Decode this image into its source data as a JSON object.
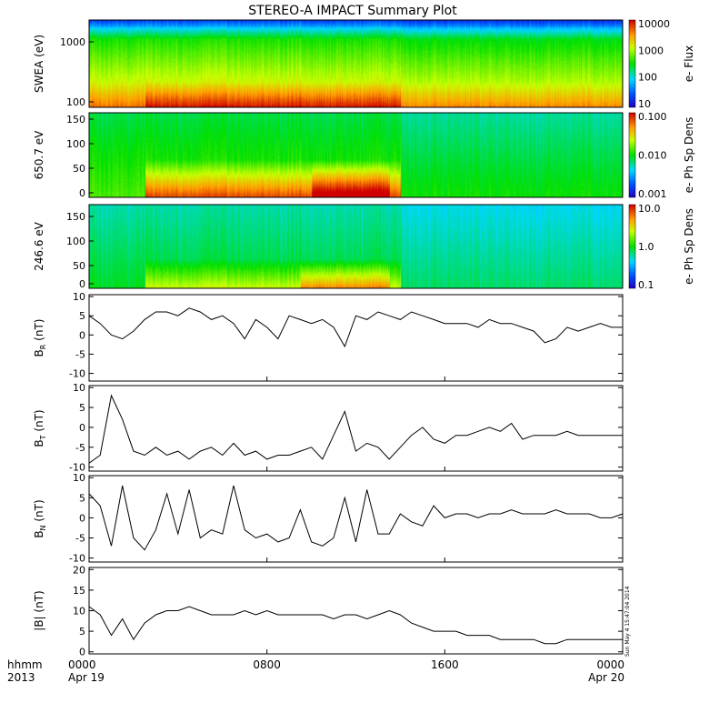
{
  "title": "STEREO-A IMPACT Summary Plot",
  "stamp": "Sun May  4 15:47:04 2014",
  "x_axis": {
    "corner_label": [
      "hhmm",
      "2013"
    ],
    "ticks": [
      {
        "label": "0000",
        "sub": "Apr 19",
        "hour": 0
      },
      {
        "label": "0800",
        "sub": "",
        "hour": 8
      },
      {
        "label": "1600",
        "sub": "",
        "hour": 16
      },
      {
        "label": "0000",
        "sub": "Apr 20",
        "hour": 24
      }
    ]
  },
  "spectrograms": [
    {
      "ylabel": "SWEA (eV)",
      "yscale": "log",
      "ytick_labels": [
        "1000",
        "100"
      ],
      "cbar_label": "e- Flux",
      "cbar_tick_labels": [
        "10000",
        "1000",
        "100",
        "10"
      ],
      "cbar_range": [
        10,
        20000
      ]
    },
    {
      "ylabel": "650.7 eV",
      "yscale": "linear",
      "ytick_labels": [
        "150",
        "100",
        "50",
        "0"
      ],
      "cbar_label": "e- Ph Sp Dens",
      "cbar_tick_labels": [
        "0.100",
        "0.010",
        "0.001"
      ],
      "cbar_range": [
        0.001,
        0.1
      ]
    },
    {
      "ylabel": "246.6 eV",
      "yscale": "linear",
      "ytick_labels": [
        "150",
        "100",
        "50",
        "0"
      ],
      "cbar_label": "e- Ph Sp Dens",
      "cbar_tick_labels": [
        "10.0",
        "1.0",
        "0.1"
      ],
      "cbar_range": [
        0.1,
        10
      ]
    }
  ],
  "colors": {
    "line": "#000000",
    "axis": "#000000",
    "background": "#ffffff"
  },
  "chart_data": [
    {
      "type": "line",
      "ylabel_main": "B",
      "ylabel_sub": "R",
      "ylabel_unit": "(nT)",
      "ylim": [
        -12,
        10.5
      ],
      "ytick_labels": [
        "10",
        "5",
        "0",
        "-5",
        "-10"
      ],
      "x_hours": [
        0,
        0.5,
        1,
        1.5,
        2,
        2.5,
        3,
        3.5,
        4,
        4.5,
        5,
        5.5,
        6,
        6.5,
        7,
        7.5,
        8,
        8.5,
        9,
        9.5,
        10,
        10.5,
        11,
        11.5,
        12,
        12.5,
        13,
        13.5,
        14,
        14.5,
        15,
        15.5,
        16,
        16.5,
        17,
        17.5,
        18,
        18.5,
        19,
        19.5,
        20,
        20.5,
        21,
        21.5,
        22,
        22.5,
        23,
        23.5,
        24
      ],
      "values": [
        5,
        3,
        0,
        -1,
        1,
        4,
        6,
        6,
        5,
        7,
        6,
        4,
        5,
        3,
        -1,
        4,
        2,
        -1,
        5,
        4,
        3,
        4,
        2,
        -3,
        5,
        4,
        6,
        5,
        4,
        6,
        5,
        4,
        3,
        3,
        3,
        2,
        4,
        3,
        3,
        2,
        1,
        -2,
        -1,
        2,
        1,
        2,
        3,
        2,
        2
      ]
    },
    {
      "type": "line",
      "ylabel_main": "B",
      "ylabel_sub": "T",
      "ylabel_unit": "(nT)",
      "ylim": [
        -11,
        10.5
      ],
      "ytick_labels": [
        "10",
        "5",
        "0",
        "-5",
        "-10"
      ],
      "x_hours": [
        0,
        0.5,
        1,
        1.5,
        2,
        2.5,
        3,
        3.5,
        4,
        4.5,
        5,
        5.5,
        6,
        6.5,
        7,
        7.5,
        8,
        8.5,
        9,
        9.5,
        10,
        10.5,
        11,
        11.5,
        12,
        12.5,
        13,
        13.5,
        14,
        14.5,
        15,
        15.5,
        16,
        16.5,
        17,
        17.5,
        18,
        18.5,
        19,
        19.5,
        20,
        20.5,
        21,
        21.5,
        22,
        22.5,
        23,
        23.5,
        24
      ],
      "values": [
        -9,
        -7,
        8,
        2,
        -6,
        -7,
        -5,
        -7,
        -6,
        -8,
        -6,
        -5,
        -7,
        -4,
        -7,
        -6,
        -8,
        -7,
        -7,
        -6,
        -5,
        -8,
        -2,
        4,
        -6,
        -4,
        -5,
        -8,
        -5,
        -2,
        0,
        -3,
        -4,
        -2,
        -2,
        -1,
        0,
        -1,
        1,
        -3,
        -2,
        -2,
        -2,
        -1,
        -2,
        -2,
        -2,
        -2,
        -2
      ]
    },
    {
      "type": "line",
      "ylabel_main": "B",
      "ylabel_sub": "N",
      "ylabel_unit": "(nT)",
      "ylim": [
        -11,
        10.5
      ],
      "ytick_labels": [
        "10",
        "5",
        "0",
        "-5",
        "-10"
      ],
      "x_hours": [
        0,
        0.5,
        1,
        1.5,
        2,
        2.5,
        3,
        3.5,
        4,
        4.5,
        5,
        5.5,
        6,
        6.5,
        7,
        7.5,
        8,
        8.5,
        9,
        9.5,
        10,
        10.5,
        11,
        11.5,
        12,
        12.5,
        13,
        13.5,
        14,
        14.5,
        15,
        15.5,
        16,
        16.5,
        17,
        17.5,
        18,
        18.5,
        19,
        19.5,
        20,
        20.5,
        21,
        21.5,
        22,
        22.5,
        23,
        23.5,
        24
      ],
      "values": [
        6,
        3,
        -7,
        8,
        -5,
        -8,
        -3,
        6,
        -4,
        7,
        -5,
        -3,
        -4,
        8,
        -3,
        -5,
        -4,
        -6,
        -5,
        2,
        -6,
        -7,
        -5,
        5,
        -6,
        7,
        -4,
        -4,
        1,
        -1,
        -2,
        3,
        0,
        1,
        1,
        0,
        1,
        1,
        2,
        1,
        1,
        1,
        2,
        1,
        1,
        1,
        0,
        0,
        1
      ]
    },
    {
      "type": "line",
      "ylabel_main": "|B|",
      "ylabel_sub": "",
      "ylabel_unit": "(nT)",
      "ylim": [
        -0.5,
        20.5
      ],
      "ytick_labels": [
        "20",
        "15",
        "10",
        "5",
        "0"
      ],
      "x_hours": [
        0,
        0.5,
        1,
        1.5,
        2,
        2.5,
        3,
        3.5,
        4,
        4.5,
        5,
        5.5,
        6,
        6.5,
        7,
        7.5,
        8,
        8.5,
        9,
        9.5,
        10,
        10.5,
        11,
        11.5,
        12,
        12.5,
        13,
        13.5,
        14,
        14.5,
        15,
        15.5,
        16,
        16.5,
        17,
        17.5,
        18,
        18.5,
        19,
        19.5,
        20,
        20.5,
        21,
        21.5,
        22,
        22.5,
        23,
        23.5,
        24
      ],
      "values": [
        11,
        9,
        4,
        8,
        3,
        7,
        9,
        10,
        10,
        11,
        10,
        9,
        9,
        9,
        10,
        9,
        10,
        9,
        9,
        9,
        9,
        9,
        8,
        9,
        9,
        8,
        9,
        10,
        9,
        7,
        6,
        5,
        5,
        5,
        4,
        4,
        4,
        3,
        3,
        3,
        3,
        2,
        2,
        3,
        3,
        3,
        3,
        3,
        3
      ]
    }
  ]
}
